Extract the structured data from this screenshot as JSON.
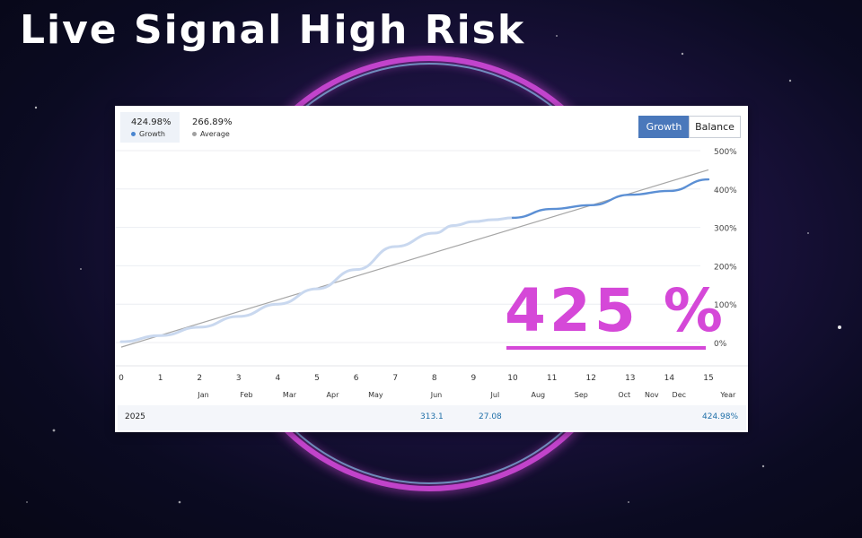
{
  "title": "Live Signal High Risk",
  "legend": {
    "growth": {
      "value": "424.98%",
      "label": "Growth",
      "color": "#4a86d0"
    },
    "average": {
      "value": "266.89%",
      "label": "Average",
      "color": "#a0a0a0"
    }
  },
  "toggle": {
    "growth_label": "Growth",
    "balance_label": "Balance"
  },
  "overlay": {
    "big_value": "425 %"
  },
  "footer": {
    "year": "2025",
    "jun_value": "313.1",
    "jul_value": "27.08",
    "year_value": "424.98%"
  },
  "colors": {
    "accent": "#4a78bb",
    "magenta": "#d548d8",
    "value_blue": "#1f6fa8"
  },
  "chart_data": {
    "type": "line",
    "x_ticks": [
      "0",
      "1",
      "2",
      "3",
      "4",
      "5",
      "6",
      "7",
      "8",
      "9",
      "10",
      "11",
      "12",
      "13",
      "14",
      "15"
    ],
    "month_ticks": [
      {
        "x": 2.1,
        "label": "Jan"
      },
      {
        "x": 3.2,
        "label": "Feb"
      },
      {
        "x": 4.3,
        "label": "Mar"
      },
      {
        "x": 5.4,
        "label": "Apr"
      },
      {
        "x": 6.5,
        "label": "May"
      },
      {
        "x": 8.05,
        "label": "Jun"
      },
      {
        "x": 9.55,
        "label": "Jul"
      },
      {
        "x": 10.65,
        "label": "Aug"
      },
      {
        "x": 11.75,
        "label": "Sep"
      },
      {
        "x": 12.85,
        "label": "Oct"
      },
      {
        "x": 13.55,
        "label": "Nov"
      },
      {
        "x": 14.25,
        "label": "Dec"
      },
      {
        "x": 15.5,
        "label": "Year"
      }
    ],
    "y_ticks": [
      {
        "v": 0,
        "label": "0%"
      },
      {
        "v": 100,
        "label": "100%"
      },
      {
        "v": 200,
        "label": "200%"
      },
      {
        "v": 300,
        "label": "300%"
      },
      {
        "v": 400,
        "label": "400%"
      },
      {
        "v": 500,
        "label": "500%"
      }
    ],
    "xlim": [
      0,
      15
    ],
    "ylim": [
      0,
      500
    ],
    "grid": true,
    "series": [
      {
        "name": "Growth",
        "x": [
          0,
          1,
          2,
          3,
          4,
          5,
          6,
          7,
          8,
          8.5,
          9,
          9.5,
          10,
          11,
          12,
          13,
          14,
          15
        ],
        "values": [
          2,
          18,
          40,
          68,
          100,
          140,
          190,
          250,
          285,
          305,
          315,
          320,
          325,
          348,
          358,
          385,
          395,
          425
        ],
        "color_early": "#c9d8ef",
        "color_late": "#5b8fd4"
      },
      {
        "name": "Average",
        "x": [
          0,
          15
        ],
        "values": [
          -12,
          450
        ],
        "color": "#a6a6a6"
      }
    ]
  }
}
